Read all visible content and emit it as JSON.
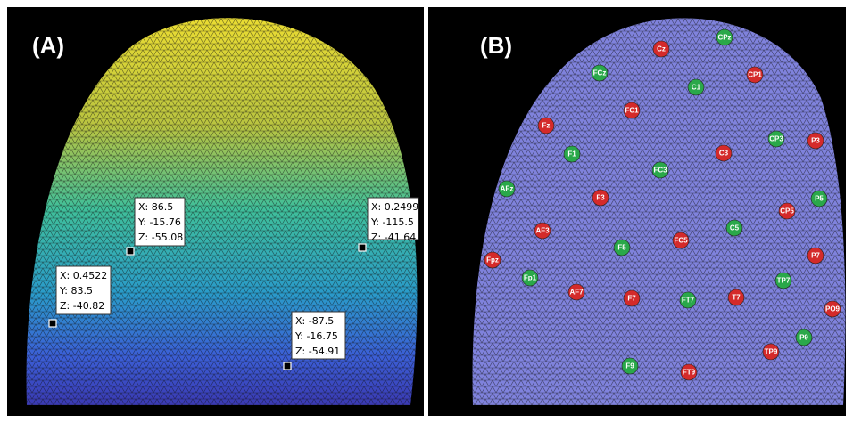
{
  "panels": [
    {
      "label": "(A)",
      "data_tips": [
        [
          "X: 86.5",
          "Y: -15.76",
          "Z: -55.08"
        ],
        [
          "X: 0.2499",
          "Y: -115.5",
          "Z: -41.64"
        ],
        [
          "X: 0.4522",
          "Y: 83.5",
          "Z: -40.82"
        ],
        [
          "X: -87.5",
          "Y: -16.75",
          "Z: -54.91"
        ]
      ]
    },
    {
      "label": "(B)",
      "electrodes": [
        {
          "label": "Cz",
          "color": "#d42a2a"
        },
        {
          "label": "CPz",
          "color": "#2aa84a"
        },
        {
          "label": "FCz",
          "color": "#2aa84a"
        },
        {
          "label": "CP1",
          "color": "#d42a2a"
        },
        {
          "label": "C1",
          "color": "#2aa84a"
        },
        {
          "label": "FC1",
          "color": "#d42a2a"
        },
        {
          "label": "Fz",
          "color": "#d42a2a"
        },
        {
          "label": "CP3",
          "color": "#2aa84a"
        },
        {
          "label": "P3",
          "color": "#d42a2a"
        },
        {
          "label": "F1",
          "color": "#2aa84a"
        },
        {
          "label": "C3",
          "color": "#d42a2a"
        },
        {
          "label": "FC3",
          "color": "#2aa84a"
        },
        {
          "label": "AFz",
          "color": "#2aa84a"
        },
        {
          "label": "F3",
          "color": "#d42a2a"
        },
        {
          "label": "P5",
          "color": "#2aa84a"
        },
        {
          "label": "CP5",
          "color": "#d42a2a"
        },
        {
          "label": "AF3",
          "color": "#d42a2a"
        },
        {
          "label": "C5",
          "color": "#2aa84a"
        },
        {
          "label": "FC5",
          "color": "#d42a2a"
        },
        {
          "label": "F5",
          "color": "#2aa84a"
        },
        {
          "label": "Fpz",
          "color": "#d42a2a"
        },
        {
          "label": "P7",
          "color": "#d42a2a"
        },
        {
          "label": "Fp1",
          "color": "#2aa84a"
        },
        {
          "label": "TP7",
          "color": "#2aa84a"
        },
        {
          "label": "AF7",
          "color": "#d42a2a"
        },
        {
          "label": "F7",
          "color": "#d42a2a"
        },
        {
          "label": "FT7",
          "color": "#2aa84a"
        },
        {
          "label": "T7",
          "color": "#d42a2a"
        },
        {
          "label": "PO9",
          "color": "#d42a2a"
        },
        {
          "label": "P9",
          "color": "#2aa84a"
        },
        {
          "label": "TP9",
          "color": "#d42a2a"
        },
        {
          "label": "F9",
          "color": "#2aa84a"
        },
        {
          "label": "FT9",
          "color": "#d42a2a"
        }
      ]
    }
  ]
}
